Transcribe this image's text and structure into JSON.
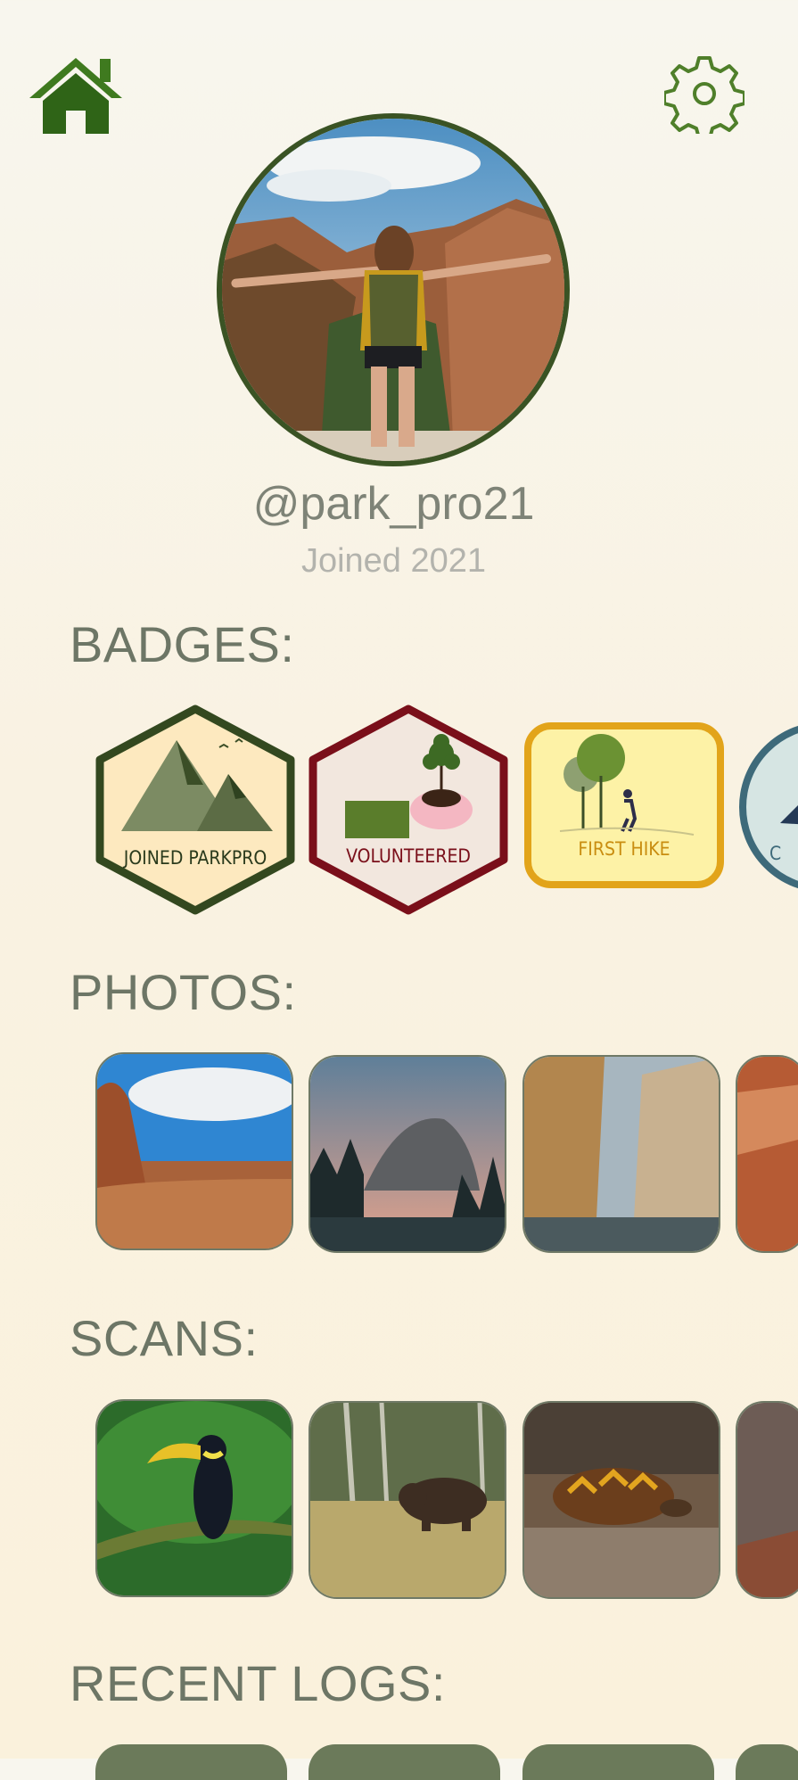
{
  "profile": {
    "username": "@park_pro21",
    "joined": "Joined 2021"
  },
  "sections": {
    "badges_title": "BADGES:",
    "photos_title": "PHOTOS:",
    "scans_title": "SCANS:",
    "logs_title": "RECENT LOGS:"
  },
  "badges": [
    {
      "label": "JOINED PARKPRO"
    },
    {
      "label": "VOLUNTEERED"
    },
    {
      "label": "FIRST HIKE"
    },
    {
      "label": "C"
    }
  ],
  "icons": {
    "home": "home-icon",
    "settings": "gear-icon"
  },
  "colors": {
    "dark_green": "#3a5324",
    "muted_text": "#7e8377",
    "maroon": "#7a0f1a",
    "gold": "#e2a41a"
  }
}
